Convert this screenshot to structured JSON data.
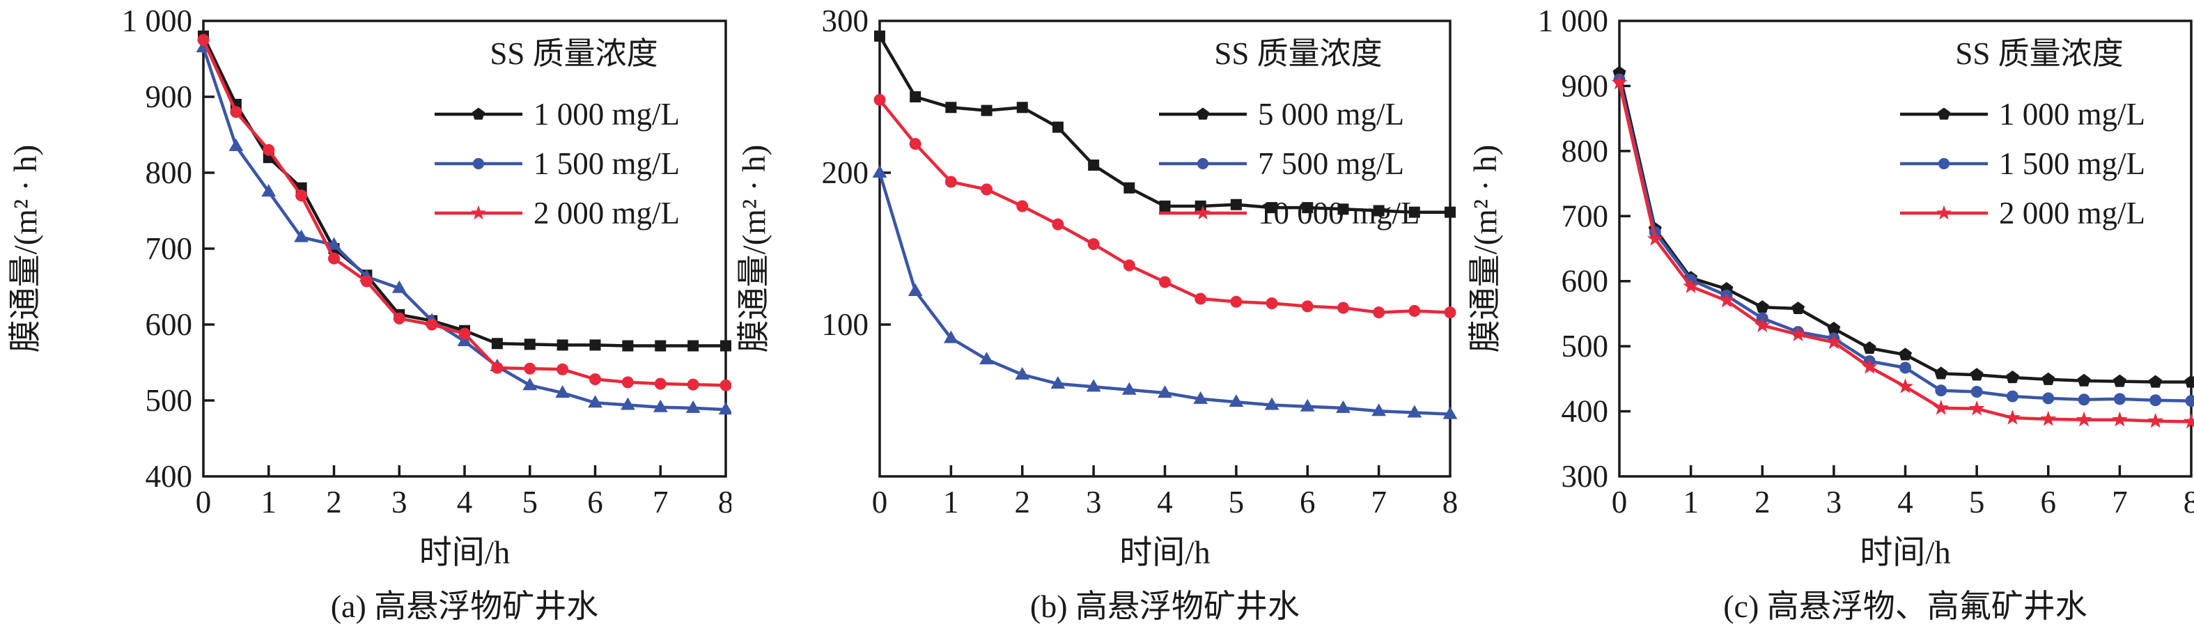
{
  "colors": {
    "axis": "#1a1a1a",
    "black_series": "#1a1a1a",
    "blue_series": "#3a56a7",
    "red_series": "#e8293c",
    "background": "#ffffff"
  },
  "chart_data": [
    {
      "id": "a",
      "type": "line",
      "caption": "(a) 高悬浮物矿井水",
      "xlabel": "时间/h",
      "ylabel": "膜通量/(m² · h)",
      "legend_title": "SS 质量浓度",
      "legend_position": "top-right-inside",
      "grid": false,
      "xlim": [
        0,
        8
      ],
      "ylim": [
        400,
        1000
      ],
      "xtick_values": [
        0,
        1,
        2,
        3,
        4,
        5,
        6,
        7,
        8
      ],
      "xtick_labels": [
        "0",
        "1",
        "2",
        "3",
        "4",
        "5",
        "6",
        "7",
        "8"
      ],
      "ytick_values": [
        400,
        500,
        600,
        700,
        800,
        900,
        1000
      ],
      "ytick_labels": [
        "400",
        "500",
        "600",
        "700",
        "800",
        "900",
        "1 000"
      ],
      "x": [
        0,
        0.5,
        1,
        1.5,
        2,
        2.5,
        3,
        3.5,
        4,
        4.5,
        5,
        5.5,
        6,
        6.5,
        7,
        7.5,
        8
      ],
      "series": [
        {
          "name": "1 000 mg/L",
          "color_key": "black_series",
          "marker": "square",
          "legend_marker": "pentagon",
          "values": [
            980,
            890,
            820,
            780,
            700,
            665,
            613,
            605,
            592,
            575,
            574,
            573,
            573,
            572,
            572,
            572,
            572
          ]
        },
        {
          "name": "1 500 mg/L",
          "color_key": "blue_series",
          "marker": "triangle",
          "legend_marker": "circle",
          "values": [
            965,
            835,
            775,
            715,
            705,
            663,
            648,
            605,
            578,
            545,
            520,
            510,
            497,
            494,
            491,
            490,
            488
          ]
        },
        {
          "name": "2 000 mg/L",
          "color_key": "red_series",
          "marker": "circle",
          "legend_marker": "star",
          "values": [
            975,
            880,
            830,
            770,
            687,
            657,
            608,
            600,
            588,
            543,
            542,
            541,
            528,
            524,
            522,
            521,
            520
          ]
        }
      ]
    },
    {
      "id": "b",
      "type": "line",
      "caption": "(b) 高悬浮物矿井水",
      "xlabel": "时间/h",
      "ylabel": "膜通量/(m² · h)",
      "legend_title": "SS 质量浓度",
      "legend_position": "top-right-inside",
      "grid": false,
      "xlim": [
        0,
        8
      ],
      "ylim": [
        0,
        300
      ],
      "xtick_values": [
        0,
        1,
        2,
        3,
        4,
        5,
        6,
        7,
        8
      ],
      "xtick_labels": [
        "0",
        "1",
        "2",
        "3",
        "4",
        "5",
        "6",
        "7",
        "8"
      ],
      "ytick_values": [
        100,
        200,
        300
      ],
      "ytick_labels": [
        "100",
        "200",
        "300"
      ],
      "x": [
        0,
        0.5,
        1,
        1.5,
        2,
        2.5,
        3,
        3.5,
        4,
        4.5,
        5,
        5.5,
        6,
        6.5,
        7,
        7.5,
        8
      ],
      "series": [
        {
          "name": "5 000 mg/L",
          "color_key": "black_series",
          "marker": "square",
          "legend_marker": "pentagon",
          "values": [
            290,
            250,
            243,
            241,
            243,
            230,
            205,
            190,
            178,
            178,
            179,
            177,
            177,
            176,
            175,
            174,
            174
          ]
        },
        {
          "name": "7 500 mg/L",
          "color_key": "blue_series",
          "marker": "triangle",
          "legend_marker": "circle",
          "values": [
            200,
            122,
            91,
            77,
            67,
            61,
            59,
            57,
            55,
            51,
            49,
            47,
            46,
            45,
            43,
            42,
            41
          ]
        },
        {
          "name": "10 000 mg/L",
          "color_key": "red_series",
          "marker": "circle",
          "legend_marker": "star",
          "values": [
            248,
            219,
            194,
            189,
            178,
            166,
            153,
            139,
            128,
            117,
            115,
            114,
            112,
            111,
            108,
            109,
            108
          ]
        }
      ]
    },
    {
      "id": "c",
      "type": "line",
      "caption": "(c) 高悬浮物、高氟矿井水",
      "xlabel": "时间/h",
      "ylabel": "膜通量/(m² · h)",
      "legend_title": "SS 质量浓度",
      "legend_position": "top-right-inside",
      "grid": false,
      "xlim": [
        0,
        8
      ],
      "ylim": [
        300,
        1000
      ],
      "xtick_values": [
        0,
        1,
        2,
        3,
        4,
        5,
        6,
        7,
        8
      ],
      "xtick_labels": [
        "0",
        "1",
        "2",
        "3",
        "4",
        "5",
        "6",
        "7",
        "8"
      ],
      "ytick_values": [
        300,
        400,
        500,
        600,
        700,
        800,
        900,
        1000
      ],
      "ytick_labels": [
        "300",
        "400",
        "500",
        "600",
        "700",
        "800",
        "900",
        "1 000"
      ],
      "x": [
        0,
        0.5,
        1,
        1.5,
        2,
        2.5,
        3,
        3.5,
        4,
        4.5,
        5,
        5.5,
        6,
        6.5,
        7,
        7.5,
        8
      ],
      "series": [
        {
          "name": "1 000 mg/L",
          "color_key": "black_series",
          "marker": "pentagon",
          "legend_marker": "pentagon",
          "values": [
            920,
            680,
            605,
            588,
            560,
            558,
            527,
            497,
            487,
            458,
            456,
            452,
            449,
            447,
            446,
            445,
            445
          ]
        },
        {
          "name": "1 500 mg/L",
          "color_key": "blue_series",
          "marker": "circle",
          "legend_marker": "circle",
          "values": [
            910,
            675,
            602,
            578,
            543,
            522,
            512,
            477,
            467,
            432,
            430,
            423,
            420,
            418,
            419,
            417,
            416
          ]
        },
        {
          "name": "2 000 mg/L",
          "color_key": "red_series",
          "marker": "star",
          "legend_marker": "star",
          "values": [
            905,
            665,
            592,
            570,
            532,
            518,
            506,
            468,
            438,
            405,
            404,
            390,
            388,
            387,
            387,
            385,
            384
          ]
        }
      ]
    }
  ]
}
